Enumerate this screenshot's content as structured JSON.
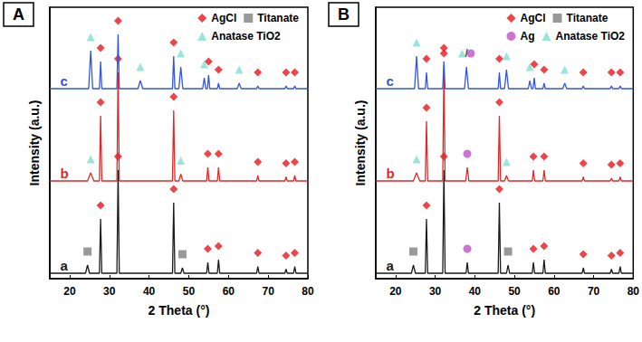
{
  "chart_data": [
    {
      "type": "line",
      "title": "A",
      "xlabel": "2 Theta (°)",
      "ylabel": "Intensity (a.u.)",
      "xlim": [
        15,
        80
      ],
      "xticks": [
        20,
        30,
        40,
        50,
        60,
        70,
        80
      ],
      "ylim": [
        0,
        100
      ],
      "tick_labels": "x",
      "grid": false,
      "legend": "upper right",
      "series": [
        {
          "name": "a",
          "type": "line",
          "color": "#1a1a1a",
          "x": [
            15,
            24.0,
            24.5,
            25.0,
            27.5,
            27.8,
            28.1,
            31.9,
            32.2,
            32.5,
            45.9,
            46.2,
            46.5,
            48.0,
            48.4,
            48.8,
            54.5,
            54.8,
            55.1,
            57.2,
            57.5,
            57.8,
            67.1,
            67.4,
            67.7,
            74.2,
            74.5,
            74.8,
            76.4,
            76.7,
            77.0,
            80
          ],
          "values": [
            2,
            2,
            5,
            2,
            2,
            22,
            2,
            2,
            40,
            2,
            2,
            28,
            2,
            2,
            4,
            2,
            2,
            6,
            2,
            2,
            7,
            2,
            2,
            4.5,
            2,
            2,
            3.5,
            2,
            2,
            4.5,
            2,
            2
          ]
        },
        {
          "name": "b",
          "type": "line",
          "color": "#e02828",
          "x": [
            15,
            24.5,
            25.3,
            26.1,
            27.5,
            27.8,
            28.1,
            31.9,
            32.2,
            32.5,
            45.9,
            46.2,
            46.5,
            47.5,
            48.0,
            48.5,
            54.5,
            54.8,
            55.1,
            57.2,
            57.5,
            57.8,
            67.1,
            67.4,
            67.7,
            74.2,
            74.5,
            74.8,
            76.4,
            76.7,
            77.0,
            80
          ],
          "values": [
            36,
            36,
            39,
            36,
            36,
            60,
            36,
            36,
            76,
            36,
            36,
            62,
            36,
            36,
            38.5,
            36,
            36,
            41,
            36,
            36,
            41,
            36,
            36,
            38,
            36,
            36,
            37.5,
            36,
            36,
            38,
            36,
            36
          ]
        },
        {
          "name": "c",
          "type": "line",
          "color": "#3355e0",
          "x": [
            15,
            24.8,
            25.3,
            25.8,
            27.5,
            27.8,
            28.1,
            31.9,
            32.2,
            32.5,
            37.2,
            37.8,
            38.4,
            45.9,
            46.2,
            46.5,
            47.5,
            48.0,
            48.5,
            53.5,
            53.9,
            54.3,
            54.7,
            55.0,
            55.3,
            57.2,
            57.5,
            57.8,
            62.2,
            62.7,
            63.2,
            67.1,
            67.4,
            67.7,
            74.2,
            74.5,
            74.8,
            76.4,
            76.7,
            77.0,
            80
          ],
          "values": [
            70,
            70,
            84,
            70,
            70,
            80,
            70,
            70,
            90,
            70,
            70,
            73,
            70,
            70,
            82,
            70,
            70,
            78,
            70,
            70,
            74,
            70,
            70,
            75,
            70,
            70,
            72,
            70,
            70,
            72,
            70,
            70,
            71,
            70,
            70,
            71,
            70,
            70,
            71,
            70,
            70
          ]
        },
        {
          "name": "AgCl",
          "type": "scatter",
          "marker": "diamond",
          "color": "#e8161c",
          "x": [
            27.8,
            32.2,
            46.2,
            54.8,
            57.5,
            67.4,
            74.5,
            76.7,
            27.8,
            32.2,
            46.2,
            54.8,
            57.5,
            67.4,
            74.5,
            76.7,
            27.8,
            32.2,
            46.2,
            55.0,
            57.5,
            67.4,
            74.5,
            76.7
          ],
          "values": [
            27,
            45,
            33,
            11,
            12,
            9.5,
            8.5,
            9.5,
            65,
            81,
            67,
            46,
            46,
            43,
            42.5,
            43,
            85,
            95,
            87,
            80,
            77,
            76,
            76,
            76
          ]
        },
        {
          "name": "Titanate",
          "type": "scatter",
          "marker": "square",
          "color": "#808080",
          "x": [
            24.5,
            48.4
          ],
          "values": [
            10,
            9
          ]
        },
        {
          "name": "Anatase TiO2",
          "type": "scatter",
          "marker": "triangle",
          "color": "#7fded6",
          "x": [
            25.3,
            48.0,
            25.3,
            37.8,
            48.0,
            53.9,
            62.7
          ],
          "values": [
            44,
            43.5,
            89,
            78,
            83,
            79,
            77
          ]
        }
      ],
      "annotations": []
    },
    {
      "type": "line",
      "title": "B",
      "xlabel": "2 Theta (°)",
      "ylabel": "Intensity (a.u.)",
      "xlim": [
        15,
        80
      ],
      "xticks": [
        20,
        30,
        40,
        50,
        60,
        70,
        80
      ],
      "ylim": [
        0,
        100
      ],
      "tick_labels": "x",
      "grid": false,
      "legend": "upper right",
      "series": [
        {
          "name": "a",
          "type": "line",
          "color": "#1a1a1a",
          "x": [
            15,
            24.0,
            24.5,
            25.0,
            27.5,
            27.8,
            28.1,
            31.9,
            32.2,
            32.5,
            37.8,
            38.1,
            38.4,
            45.9,
            46.2,
            46.5,
            48.0,
            48.4,
            48.8,
            54.5,
            54.8,
            55.1,
            57.2,
            57.5,
            57.8,
            67.1,
            67.4,
            67.7,
            74.2,
            74.5,
            74.8,
            76.4,
            76.7,
            77.0,
            80
          ],
          "values": [
            2,
            2,
            5,
            2,
            2,
            22,
            2,
            2,
            40,
            2,
            2,
            6,
            2,
            2,
            28,
            2,
            2,
            5,
            2,
            2,
            6,
            2,
            2,
            7,
            2,
            2,
            4,
            2,
            2,
            3.5,
            2,
            2,
            4.5,
            2,
            2
          ]
        },
        {
          "name": "b",
          "type": "line",
          "color": "#e02828",
          "x": [
            15,
            24.5,
            25.3,
            26.1,
            27.5,
            27.8,
            28.1,
            31.9,
            32.2,
            32.5,
            37.7,
            38.1,
            38.5,
            45.9,
            46.2,
            46.5,
            47.5,
            48.0,
            48.5,
            54.5,
            54.8,
            55.1,
            57.2,
            57.5,
            57.8,
            67.1,
            67.4,
            67.7,
            74.2,
            74.5,
            74.8,
            76.4,
            76.7,
            77.0,
            80
          ],
          "values": [
            36,
            36,
            39,
            36,
            36,
            58,
            36,
            36,
            78,
            36,
            36,
            41,
            36,
            36,
            60,
            36,
            36,
            38,
            36,
            36,
            40,
            36,
            36,
            40,
            36,
            36,
            37.5,
            36,
            36,
            37,
            36,
            36,
            37.5,
            36,
            36
          ]
        },
        {
          "name": "c",
          "type": "line",
          "color": "#3355e0",
          "x": [
            15,
            24.8,
            25.3,
            25.8,
            27.5,
            27.8,
            28.1,
            31.9,
            32.2,
            32.5,
            37.4,
            37.9,
            38.4,
            45.9,
            46.2,
            46.5,
            47.5,
            48.0,
            48.5,
            53.5,
            53.9,
            54.3,
            54.7,
            55.0,
            55.3,
            57.2,
            57.5,
            57.8,
            62.2,
            62.7,
            63.2,
            67.1,
            67.4,
            67.7,
            74.2,
            74.5,
            74.8,
            76.4,
            76.7,
            77.0,
            80
          ],
          "values": [
            70,
            70,
            82,
            70,
            70,
            76,
            70,
            70,
            80,
            70,
            70,
            78,
            70,
            70,
            76,
            70,
            70,
            77,
            70,
            70,
            73,
            70,
            70,
            74,
            70,
            70,
            72,
            70,
            70,
            72,
            70,
            70,
            71,
            70,
            70,
            71,
            70,
            70,
            71,
            70,
            70
          ]
        },
        {
          "name": "AgCl",
          "type": "scatter",
          "marker": "diamond",
          "color": "#e8161c",
          "x": [
            27.8,
            32.2,
            46.2,
            54.8,
            57.5,
            67.4,
            74.5,
            76.7,
            27.8,
            32.2,
            46.2,
            54.8,
            57.5,
            67.4,
            74.5,
            76.7,
            27.8,
            32.2,
            46.2,
            55.0,
            57.5,
            67.4,
            74.5,
            76.7
          ],
          "values": [
            27,
            45,
            33,
            11,
            12,
            9,
            8.5,
            9.5,
            63,
            83,
            65,
            45,
            45,
            42.5,
            42,
            42.5,
            81,
            85,
            81,
            79,
            77,
            76,
            76,
            76
          ]
        },
        {
          "name": "Titanate",
          "type": "scatter",
          "marker": "square",
          "color": "#808080",
          "x": [
            24.5,
            48.4
          ],
          "values": [
            10,
            10
          ]
        },
        {
          "name": "Ag",
          "type": "scatter",
          "marker": "circle",
          "color": "#c050c8",
          "x": [
            38.1,
            38.1,
            39.0
          ],
          "values": [
            11,
            46,
            83
          ]
        },
        {
          "name": "Anatase TiO2",
          "type": "scatter",
          "marker": "triangle",
          "color": "#7fded6",
          "x": [
            25.3,
            48.0,
            25.3,
            36.8,
            48.0,
            53.9,
            62.7
          ],
          "values": [
            44,
            43,
            87,
            83,
            82,
            78,
            77
          ]
        }
      ],
      "annotations": [
        {
          "text": "/",
          "x": 37.9,
          "y": 83
        }
      ]
    }
  ]
}
